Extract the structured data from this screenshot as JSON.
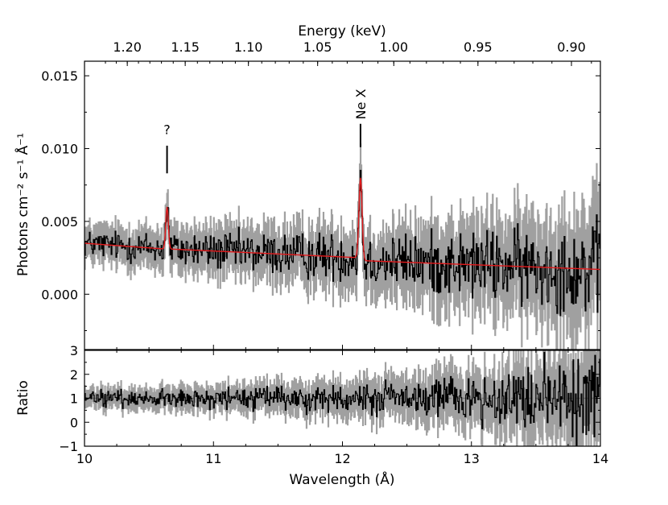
{
  "chart_data": [
    {
      "panel": "spectrum",
      "type": "line",
      "xlabel": "Wavelength (Å)",
      "ylabel": "Photons cm⁻² s⁻¹ Å⁻¹",
      "top_axis_label": "Energy (keV)",
      "xlim": [
        10,
        14
      ],
      "ylim": [
        -0.0038,
        0.016
      ],
      "yticks": [
        0.0,
        0.005,
        0.01,
        0.015
      ],
      "ytick_labels": [
        "0.000",
        "0.005",
        "0.010",
        "0.015"
      ],
      "top_ticks_keV": [
        1.2,
        1.15,
        1.1,
        1.05,
        1.0,
        0.95,
        0.9
      ],
      "top_tick_labels": [
        "1.20",
        "1.15",
        "1.10",
        "1.05",
        "1.00",
        "0.95",
        "0.90"
      ],
      "grid": false,
      "series": [
        {
          "role": "data",
          "color": "#000000",
          "error_color": "#a0a0a0",
          "description_points": {
            "x": [
              10.0,
              10.25,
              10.5,
              10.75,
              11.0,
              11.25,
              11.5,
              11.75,
              12.0,
              12.25,
              12.5,
              12.75,
              13.0,
              13.25,
              13.5,
              13.75,
              14.0
            ],
            "y": [
              0.0033,
              0.0032,
              0.0031,
              0.0029,
              0.0027,
              0.0027,
              0.0026,
              0.0026,
              0.0025,
              0.0023,
              0.0023,
              0.0023,
              0.0021,
              0.002,
              0.0019,
              0.0018,
              0.0017
            ],
            "err": [
              0.001,
              0.0011,
              0.0012,
              0.0013,
              0.0014,
              0.0015,
              0.0016,
              0.0017,
              0.0018,
              0.0019,
              0.0021,
              0.0023,
              0.0025,
              0.0027,
              0.0029,
              0.0032,
              0.0036
            ]
          }
        },
        {
          "role": "model",
          "color": "#e31a1c",
          "continuum": {
            "x": [
              10.0,
              10.63,
              10.67,
              12.15,
              12.17,
              14.0
            ],
            "y": [
              0.0035,
              0.0031,
              0.0031,
              0.0025,
              0.0023,
              0.0017
            ]
          },
          "lines": [
            {
              "center": 10.64,
              "peak": 0.006,
              "width": 0.01
            },
            {
              "center": 12.14,
              "peak": 0.008,
              "width": 0.012
            }
          ]
        }
      ],
      "annotations": [
        {
          "text": "?",
          "x": 10.64,
          "line_y": [
            0.0083,
            0.0102
          ],
          "text_y": 0.011
        },
        {
          "text": "Ne X",
          "x": 12.14,
          "line_y": [
            0.0101,
            0.0117
          ],
          "text_y": 0.012
        }
      ]
    },
    {
      "panel": "ratio",
      "type": "line",
      "xlabel": "Wavelength (Å)",
      "ylabel": "Ratio",
      "xlim": [
        10,
        14
      ],
      "ylim": [
        -1,
        3
      ],
      "xticks": [
        10,
        11,
        12,
        13,
        14
      ],
      "xtick_labels": [
        "10",
        "11",
        "12",
        "13",
        "14"
      ],
      "yticks": [
        -1,
        0,
        1,
        2,
        3
      ],
      "ytick_labels": [
        "−1",
        "0",
        "1",
        "2",
        "3"
      ],
      "reference_line": 1,
      "grid": false,
      "series": [
        {
          "role": "ratio",
          "color": "#000000",
          "error_color": "#a0a0a0",
          "description_points": {
            "x": [
              10.0,
              10.5,
              11.0,
              11.5,
              12.0,
              12.5,
              13.0,
              13.5,
              14.0
            ],
            "y": [
              1.0,
              1.0,
              1.0,
              1.0,
              1.0,
              1.0,
              1.0,
              1.0,
              1.0
            ],
            "err": [
              0.35,
              0.4,
              0.45,
              0.55,
              0.65,
              0.8,
              1.0,
              1.4,
              1.9
            ]
          }
        }
      ]
    }
  ]
}
